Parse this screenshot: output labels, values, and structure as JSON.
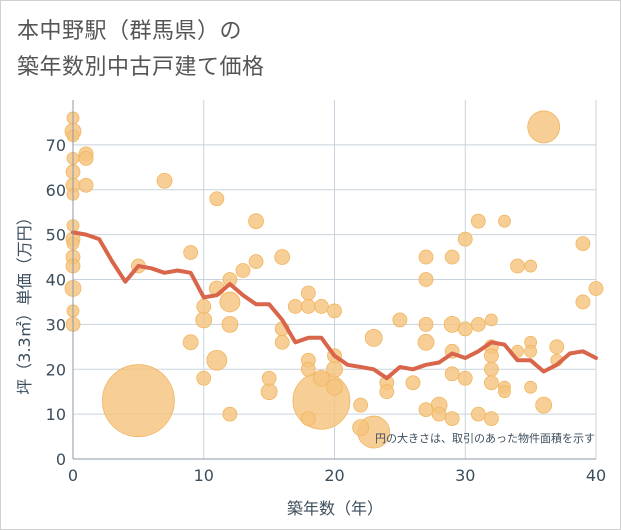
{
  "title_line1": "本中野駅（群馬県）の",
  "title_line2": "築年数別中古戸建て価格",
  "chart_data": {
    "type": "scatter",
    "xlabel": "築年数（年）",
    "ylabel": "坪（3.3㎡）単価（万円）",
    "xlim": [
      0,
      40
    ],
    "ylim": [
      0,
      80
    ],
    "x_ticks": [
      0,
      10,
      20,
      30,
      40
    ],
    "y_ticks": [
      0,
      10,
      20,
      30,
      40,
      50,
      60,
      70
    ],
    "grid": true,
    "annotation": "円の大きさは、取引のあった物件面積を示す",
    "colors": {
      "bubble": "#f5c57f",
      "bubble_edge": "#f0b560",
      "line": "#d9664a",
      "grid": "#c9d3de",
      "axis_text": "#3c4d5c"
    },
    "points": [
      {
        "x": 0,
        "y": 76,
        "size": 10
      },
      {
        "x": 0,
        "y": 73,
        "size": 14
      },
      {
        "x": 0,
        "y": 72,
        "size": 10
      },
      {
        "x": 0,
        "y": 67,
        "size": 10
      },
      {
        "x": 0,
        "y": 64,
        "size": 12
      },
      {
        "x": 0,
        "y": 61,
        "size": 12
      },
      {
        "x": 0,
        "y": 59,
        "size": 10
      },
      {
        "x": 0,
        "y": 52,
        "size": 10
      },
      {
        "x": 0,
        "y": 49,
        "size": 12
      },
      {
        "x": 0,
        "y": 48,
        "size": 10
      },
      {
        "x": 0,
        "y": 45,
        "size": 12
      },
      {
        "x": 0,
        "y": 43,
        "size": 12
      },
      {
        "x": 0,
        "y": 38,
        "size": 14
      },
      {
        "x": 0,
        "y": 33,
        "size": 10
      },
      {
        "x": 0,
        "y": 30,
        "size": 12
      },
      {
        "x": 1,
        "y": 68,
        "size": 12
      },
      {
        "x": 1,
        "y": 67,
        "size": 12
      },
      {
        "x": 1,
        "y": 61,
        "size": 12
      },
      {
        "x": 5,
        "y": 13,
        "size": 70
      },
      {
        "x": 5,
        "y": 43,
        "size": 12
      },
      {
        "x": 7,
        "y": 62,
        "size": 13
      },
      {
        "x": 9,
        "y": 46,
        "size": 12
      },
      {
        "x": 9,
        "y": 26,
        "size": 13
      },
      {
        "x": 10,
        "y": 34,
        "size": 12
      },
      {
        "x": 10,
        "y": 31,
        "size": 14
      },
      {
        "x": 10,
        "y": 18,
        "size": 12
      },
      {
        "x": 11,
        "y": 58,
        "size": 12
      },
      {
        "x": 11,
        "y": 38,
        "size": 13
      },
      {
        "x": 11,
        "y": 22,
        "size": 18
      },
      {
        "x": 12,
        "y": 40,
        "size": 12
      },
      {
        "x": 12,
        "y": 35,
        "size": 18
      },
      {
        "x": 12,
        "y": 30,
        "size": 14
      },
      {
        "x": 12,
        "y": 10,
        "size": 12
      },
      {
        "x": 13,
        "y": 42,
        "size": 12
      },
      {
        "x": 14,
        "y": 53,
        "size": 13
      },
      {
        "x": 14,
        "y": 44,
        "size": 12
      },
      {
        "x": 15,
        "y": 18,
        "size": 12
      },
      {
        "x": 15,
        "y": 15,
        "size": 14
      },
      {
        "x": 16,
        "y": 45,
        "size": 13
      },
      {
        "x": 16,
        "y": 29,
        "size": 12
      },
      {
        "x": 16,
        "y": 26,
        "size": 12
      },
      {
        "x": 17,
        "y": 34,
        "size": 12
      },
      {
        "x": 18,
        "y": 37,
        "size": 12
      },
      {
        "x": 18,
        "y": 34,
        "size": 12
      },
      {
        "x": 18,
        "y": 22,
        "size": 12
      },
      {
        "x": 18,
        "y": 20,
        "size": 12
      },
      {
        "x": 18,
        "y": 9,
        "size": 12
      },
      {
        "x": 19,
        "y": 34,
        "size": 12
      },
      {
        "x": 19,
        "y": 18,
        "size": 14
      },
      {
        "x": 19,
        "y": 13,
        "size": 55
      },
      {
        "x": 20,
        "y": 33,
        "size": 12
      },
      {
        "x": 20,
        "y": 23,
        "size": 12
      },
      {
        "x": 20,
        "y": 20,
        "size": 14
      },
      {
        "x": 20,
        "y": 16,
        "size": 14
      },
      {
        "x": 22,
        "y": 12,
        "size": 12
      },
      {
        "x": 22,
        "y": 7,
        "size": 14
      },
      {
        "x": 23,
        "y": 6,
        "size": 30
      },
      {
        "x": 23,
        "y": 27,
        "size": 15
      },
      {
        "x": 24,
        "y": 17,
        "size": 12
      },
      {
        "x": 24,
        "y": 15,
        "size": 12
      },
      {
        "x": 25,
        "y": 31,
        "size": 12
      },
      {
        "x": 26,
        "y": 17,
        "size": 12
      },
      {
        "x": 27,
        "y": 45,
        "size": 12
      },
      {
        "x": 27,
        "y": 40,
        "size": 12
      },
      {
        "x": 27,
        "y": 30,
        "size": 12
      },
      {
        "x": 27,
        "y": 26,
        "size": 14
      },
      {
        "x": 27,
        "y": 11,
        "size": 12
      },
      {
        "x": 28,
        "y": 12,
        "size": 14
      },
      {
        "x": 28,
        "y": 10,
        "size": 12
      },
      {
        "x": 29,
        "y": 45,
        "size": 12
      },
      {
        "x": 29,
        "y": 30,
        "size": 14
      },
      {
        "x": 29,
        "y": 24,
        "size": 12
      },
      {
        "x": 29,
        "y": 19,
        "size": 12
      },
      {
        "x": 29,
        "y": 9,
        "size": 12
      },
      {
        "x": 30,
        "y": 49,
        "size": 12
      },
      {
        "x": 30,
        "y": 29,
        "size": 12
      },
      {
        "x": 30,
        "y": 18,
        "size": 12
      },
      {
        "x": 31,
        "y": 53,
        "size": 12
      },
      {
        "x": 31,
        "y": 30,
        "size": 12
      },
      {
        "x": 31,
        "y": 10,
        "size": 12
      },
      {
        "x": 32,
        "y": 31,
        "size": 10
      },
      {
        "x": 32,
        "y": 25,
        "size": 12
      },
      {
        "x": 32,
        "y": 23,
        "size": 12
      },
      {
        "x": 32,
        "y": 20,
        "size": 12
      },
      {
        "x": 32,
        "y": 17,
        "size": 12
      },
      {
        "x": 32,
        "y": 9,
        "size": 12
      },
      {
        "x": 33,
        "y": 53,
        "size": 10
      },
      {
        "x": 33,
        "y": 16,
        "size": 10
      },
      {
        "x": 33,
        "y": 15,
        "size": 10
      },
      {
        "x": 34,
        "y": 43,
        "size": 12
      },
      {
        "x": 34,
        "y": 24,
        "size": 10
      },
      {
        "x": 35,
        "y": 43,
        "size": 10
      },
      {
        "x": 35,
        "y": 26,
        "size": 10
      },
      {
        "x": 35,
        "y": 24,
        "size": 10
      },
      {
        "x": 35,
        "y": 16,
        "size": 10
      },
      {
        "x": 36,
        "y": 74,
        "size": 30
      },
      {
        "x": 36,
        "y": 12,
        "size": 14
      },
      {
        "x": 37,
        "y": 25,
        "size": 12
      },
      {
        "x": 37,
        "y": 22,
        "size": 10
      },
      {
        "x": 39,
        "y": 48,
        "size": 12
      },
      {
        "x": 39,
        "y": 35,
        "size": 12
      },
      {
        "x": 40,
        "y": 38,
        "size": 12
      }
    ],
    "line": {
      "x": [
        0,
        1,
        2,
        3,
        4,
        5,
        6,
        7,
        8,
        9,
        10,
        11,
        12,
        13,
        14,
        15,
        16,
        17,
        18,
        19,
        20,
        21,
        22,
        23,
        24,
        25,
        26,
        27,
        28,
        29,
        30,
        31,
        32,
        33,
        34,
        35,
        36,
        37,
        38,
        39,
        40
      ],
      "y": [
        50.5,
        50,
        49,
        44,
        39.5,
        43,
        42.5,
        41.5,
        42,
        41.5,
        36,
        36.5,
        39,
        36.5,
        34.5,
        34.5,
        31,
        26,
        27,
        27,
        23,
        21,
        20.5,
        20,
        18,
        20.5,
        20,
        21,
        21.5,
        23.5,
        22.5,
        24,
        26,
        25.5,
        22,
        22,
        19.5,
        21,
        23.5,
        24,
        22.5
      ]
    }
  }
}
